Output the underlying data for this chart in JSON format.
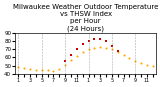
{
  "title": "Milwaukee Weather Outdoor Temperature\nvs THSW Index\nper Hour\n(24 Hours)",
  "xlabel_vals": [
    "1",
    "3",
    "5",
    "7",
    "9",
    "11",
    "1",
    "3",
    "5",
    "7",
    "9",
    "11",
    "1",
    "3",
    "5",
    "7",
    "9",
    "11",
    "1",
    "3",
    "5",
    "7",
    "9",
    "11"
  ],
  "hours": [
    0,
    1,
    2,
    3,
    4,
    5,
    6,
    7,
    8,
    9,
    10,
    11,
    12,
    13,
    14,
    15,
    16,
    17,
    18,
    19,
    20,
    21,
    22,
    23
  ],
  "temp": [
    48,
    47,
    46,
    45,
    44,
    44,
    43,
    46,
    51,
    57,
    62,
    67,
    70,
    72,
    73,
    72,
    70,
    67,
    63,
    59,
    56,
    53,
    51,
    49
  ],
  "thsw": [
    null,
    null,
    null,
    null,
    null,
    null,
    null,
    null,
    55,
    63,
    70,
    76,
    80,
    82,
    83,
    80,
    74,
    68,
    null,
    null,
    null,
    null,
    null,
    null
  ],
  "temp_color": "#FFA500",
  "thsw_color": "#CC0000",
  "bg_color": "#ffffff",
  "grid_color": "#888888",
  "ylim_min": 40,
  "ylim_max": 90,
  "yticks": [
    40,
    50,
    60,
    70,
    80,
    90
  ],
  "title_fontsize": 5,
  "tick_fontsize": 4
}
